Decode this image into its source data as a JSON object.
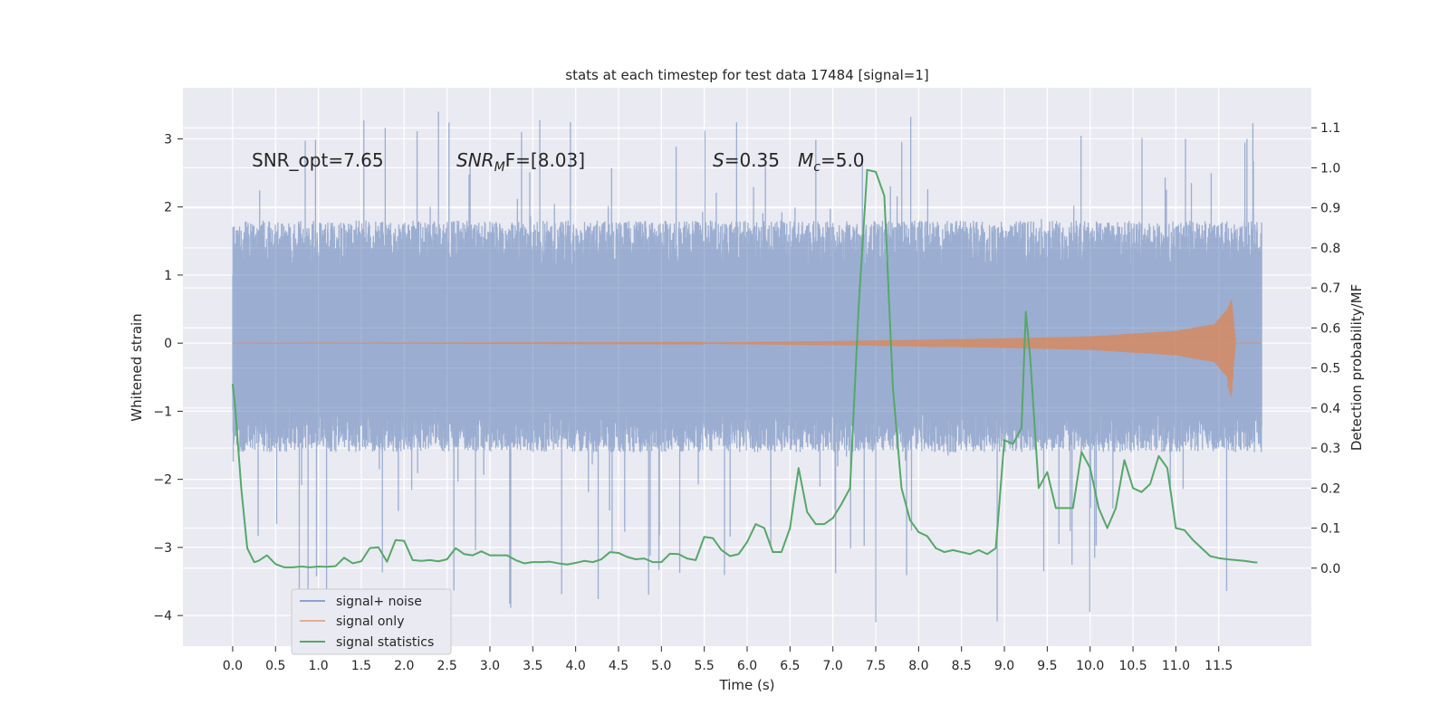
{
  "chart_data": {
    "type": "line",
    "title": "stats at each timestep for test data 17484 [signal=1]",
    "xlabel": "Time (s)",
    "ylabel_left": "Whitened strain",
    "ylabel_right": "Detection probability/MF",
    "xlim": [
      -0.58,
      12.58
    ],
    "ylim_left": [
      -4.45,
      3.75
    ],
    "ylim_right": [
      -0.195,
      1.2
    ],
    "x_ticks": [
      0.0,
      0.5,
      1.0,
      1.5,
      2.0,
      2.5,
      3.0,
      3.5,
      4.0,
      4.5,
      5.0,
      5.5,
      6.0,
      6.5,
      7.0,
      7.5,
      8.0,
      8.5,
      9.0,
      9.5,
      10.0,
      10.5,
      11.0,
      11.5
    ],
    "x_tick_labels": [
      "0.0",
      "0.5",
      "1.0",
      "1.5",
      "2.0",
      "2.5",
      "3.0",
      "3.5",
      "4.0",
      "4.5",
      "5.0",
      "5.5",
      "6.0",
      "6.5",
      "7.0",
      "7.5",
      "8.0",
      "8.5",
      "9.0",
      "9.5",
      "10.0",
      "10.5",
      "11.0",
      "11.5"
    ],
    "y_left_ticks": [
      -4,
      -3,
      -2,
      -1,
      0,
      1,
      2,
      3
    ],
    "y_left_tick_labels": [
      "−4",
      "−3",
      "−2",
      "−1",
      "0",
      "1",
      "2",
      "3"
    ],
    "y_right_ticks": [
      0.0,
      0.1,
      0.2,
      0.3,
      0.4,
      0.5,
      0.6,
      0.7,
      0.8,
      0.9,
      1.0,
      1.1
    ],
    "y_right_tick_labels": [
      "0.0",
      "0.1",
      "0.2",
      "0.3",
      "0.4",
      "0.5",
      "0.6",
      "0.7",
      "0.8",
      "0.9",
      "1.0",
      "1.1"
    ],
    "grid": true,
    "legend_placement": "lower-left",
    "annotations": {
      "snr_opt": "SNR_opt=7.65",
      "snr_mf_base": "SNR",
      "snr_mf_sub": "M",
      "snr_mf_rest": "F=[8.03]",
      "s_sym": "S",
      "s_val": "=0.35",
      "mc_sym": "M",
      "mc_sub": "c",
      "mc_val": "=5.0"
    },
    "series": [
      {
        "name": "signal+ noise",
        "axis": "left",
        "color": "#4c72b0",
        "style": "noise-band",
        "x_range": [
          0.0,
          12.0
        ],
        "typical_envelope": [
          -1.6,
          1.8
        ],
        "min": -4.1,
        "max": 3.4
      },
      {
        "name": "signal only",
        "axis": "left",
        "color": "#dd8452",
        "style": "chirp",
        "x_range": [
          0.0,
          12.0
        ],
        "peak_time": 11.65,
        "envelope": [
          {
            "x": 5.5,
            "y": 0.01
          },
          {
            "x": 7.0,
            "y": 0.03
          },
          {
            "x": 8.0,
            "y": 0.05
          },
          {
            "x": 9.0,
            "y": 0.07
          },
          {
            "x": 10.0,
            "y": 0.1
          },
          {
            "x": 11.0,
            "y": 0.18
          },
          {
            "x": 11.45,
            "y": 0.28
          },
          {
            "x": 11.6,
            "y": 0.5
          },
          {
            "x": 11.65,
            "y": 0.65
          }
        ]
      },
      {
        "name": "signal statistics",
        "axis": "right",
        "color": "#55a868",
        "style": "line",
        "x": [
          0.0,
          0.03,
          0.1,
          0.17,
          0.25,
          0.3,
          0.4,
          0.5,
          0.6,
          0.7,
          0.8,
          0.9,
          1.0,
          1.1,
          1.2,
          1.3,
          1.4,
          1.5,
          1.6,
          1.7,
          1.8,
          1.9,
          2.0,
          2.1,
          2.2,
          2.3,
          2.4,
          2.5,
          2.6,
          2.7,
          2.8,
          2.9,
          3.0,
          3.1,
          3.2,
          3.3,
          3.4,
          3.5,
          3.6,
          3.7,
          3.8,
          3.9,
          4.0,
          4.1,
          4.2,
          4.3,
          4.4,
          4.5,
          4.6,
          4.7,
          4.8,
          4.9,
          5.0,
          5.1,
          5.2,
          5.3,
          5.4,
          5.5,
          5.6,
          5.7,
          5.8,
          5.9,
          6.0,
          6.1,
          6.2,
          6.3,
          6.4,
          6.5,
          6.6,
          6.7,
          6.8,
          6.9,
          7.0,
          7.1,
          7.2,
          7.3,
          7.4,
          7.5,
          7.6,
          7.7,
          7.8,
          7.9,
          8.0,
          8.1,
          8.2,
          8.3,
          8.4,
          8.5,
          8.6,
          8.7,
          8.8,
          8.9,
          9.0,
          9.1,
          9.2,
          9.25,
          9.3,
          9.4,
          9.5,
          9.6,
          9.7,
          9.8,
          9.9,
          10.0,
          10.1,
          10.2,
          10.3,
          10.4,
          10.5,
          10.6,
          10.7,
          10.8,
          10.9,
          11.0,
          11.1,
          11.2,
          11.3,
          11.4,
          11.5,
          11.6,
          11.7,
          11.8,
          11.9,
          11.95
        ],
        "values": [
          0.46,
          0.4,
          0.2,
          0.05,
          0.015,
          0.018,
          0.032,
          0.01,
          0.002,
          0.002,
          0.004,
          0.002,
          0.004,
          0.003,
          0.005,
          0.026,
          0.012,
          0.017,
          0.05,
          0.052,
          0.016,
          0.07,
          0.068,
          0.02,
          0.018,
          0.02,
          0.017,
          0.022,
          0.05,
          0.035,
          0.032,
          0.042,
          0.032,
          0.032,
          0.032,
          0.02,
          0.012,
          0.015,
          0.015,
          0.016,
          0.012,
          0.009,
          0.013,
          0.018,
          0.015,
          0.022,
          0.04,
          0.038,
          0.028,
          0.022,
          0.024,
          0.015,
          0.015,
          0.036,
          0.035,
          0.024,
          0.02,
          0.078,
          0.075,
          0.045,
          0.03,
          0.035,
          0.065,
          0.11,
          0.1,
          0.04,
          0.04,
          0.1,
          0.25,
          0.14,
          0.11,
          0.11,
          0.125,
          0.16,
          0.2,
          0.65,
          0.995,
          0.99,
          0.93,
          0.45,
          0.2,
          0.12,
          0.09,
          0.08,
          0.05,
          0.04,
          0.045,
          0.04,
          0.035,
          0.045,
          0.035,
          0.05,
          0.32,
          0.31,
          0.35,
          0.64,
          0.53,
          0.2,
          0.24,
          0.15,
          0.15,
          0.15,
          0.29,
          0.25,
          0.15,
          0.1,
          0.15,
          0.27,
          0.2,
          0.19,
          0.21,
          0.28,
          0.25,
          0.1,
          0.095,
          0.07,
          0.05,
          0.03,
          0.025,
          0.022,
          0.02,
          0.018,
          0.015,
          0.014
        ]
      }
    ]
  }
}
